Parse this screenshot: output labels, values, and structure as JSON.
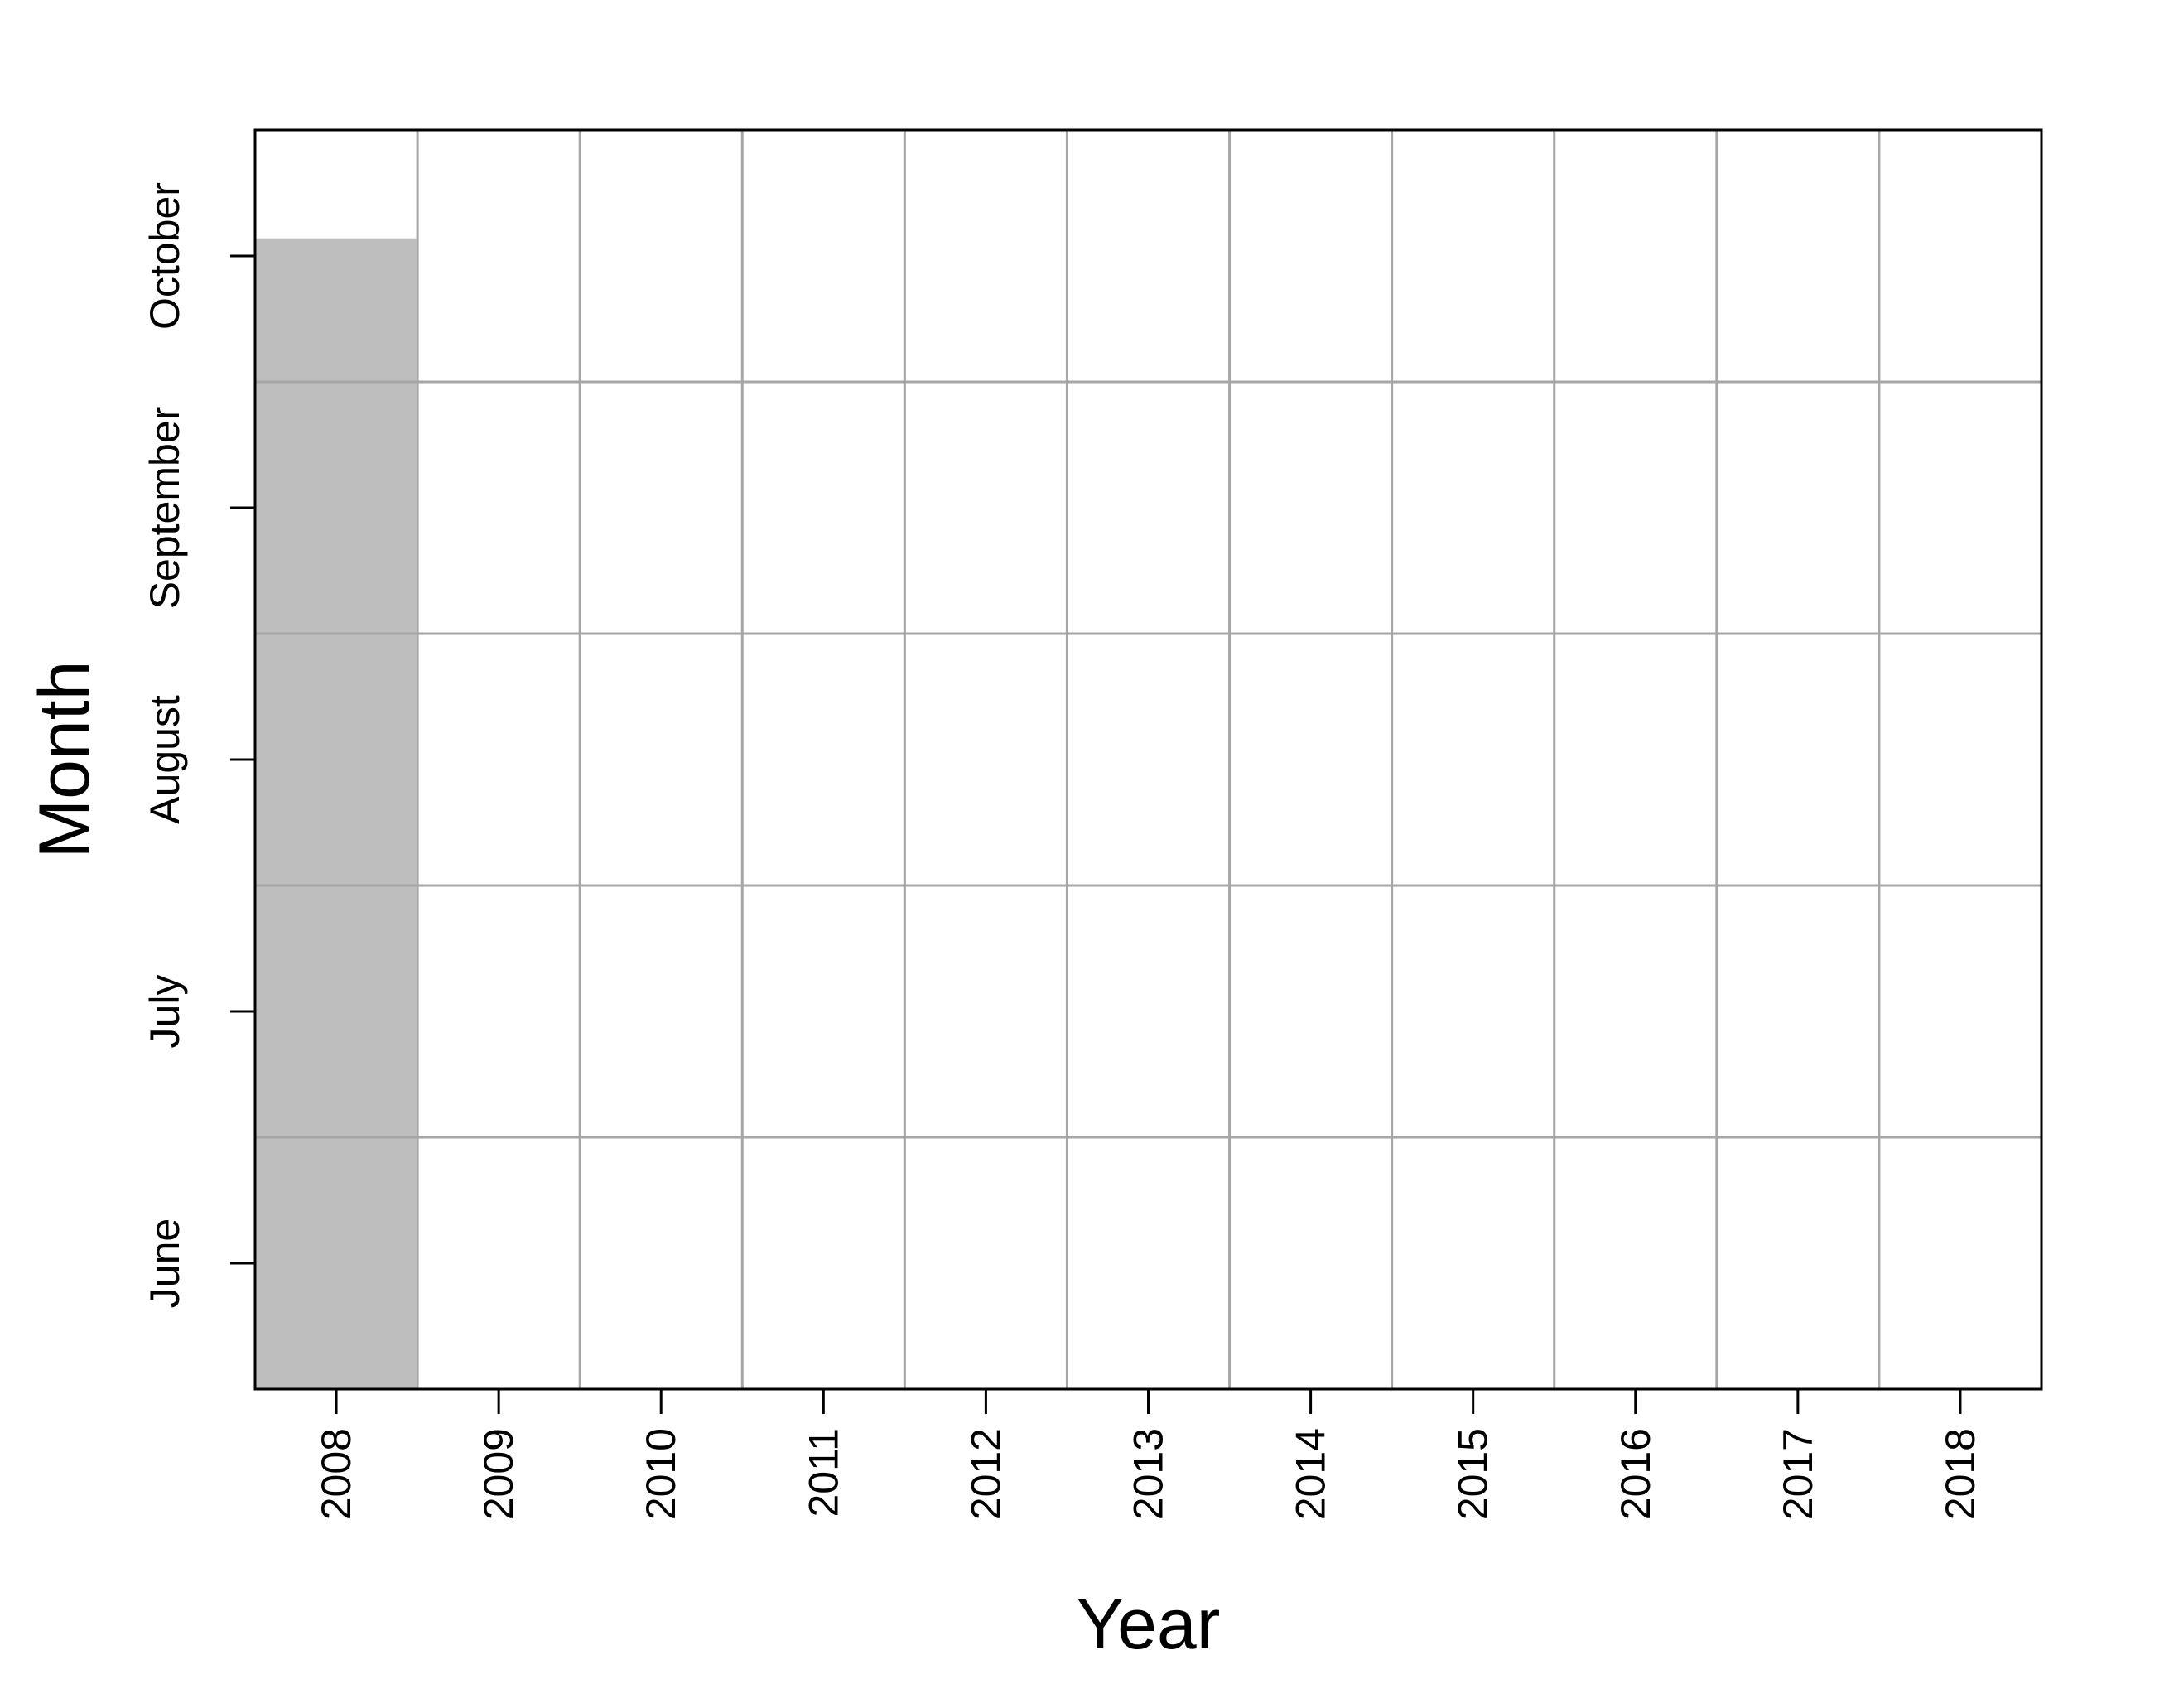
{
  "chart_data": {
    "type": "bar",
    "xlabel": "Year",
    "ylabel": "Month",
    "categories": [
      "2008",
      "2009",
      "2010",
      "2011",
      "2012",
      "2013",
      "2014",
      "2015",
      "2016",
      "2017",
      "2018"
    ],
    "y_ticks": [
      {
        "label": "June",
        "value": 6
      },
      {
        "label": "July",
        "value": 7
      },
      {
        "label": "August",
        "value": 8
      },
      {
        "label": "September",
        "value": 9
      },
      {
        "label": "October",
        "value": 10
      }
    ],
    "ylim": [
      5.5,
      10.5
    ],
    "horizontal_grid_at": [
      6.5,
      7.5,
      8.5,
      9.5
    ],
    "series": [
      {
        "color": "#bebebe",
        "bars": [
          {
            "category": "2008",
            "from": 5.5,
            "to": 10.07
          }
        ]
      }
    ],
    "grid": true,
    "grid_color": "#a6a6a6",
    "legend": "none"
  }
}
